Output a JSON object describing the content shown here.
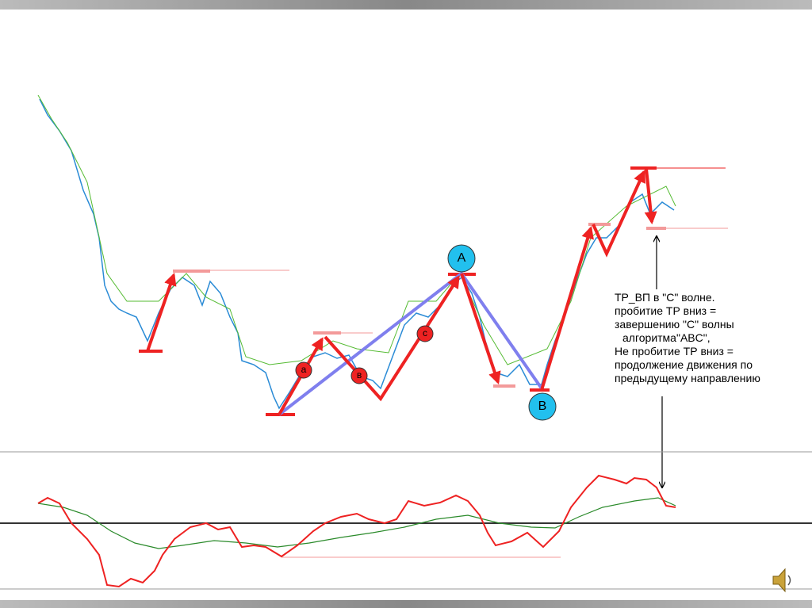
{
  "labels": {
    "A": "A",
    "B": "B",
    "a": "a",
    "b": "в",
    "c": "c"
  },
  "note": {
    "lines": [
      "ТР_ВП в \"С\" волне.",
      "пробитие ТР вниз  =",
      "завершению \"С\" волны",
      "алгоритма\"ABC\",",
      "Не пробитие ТР вниз =",
      "продолжение движения по",
      "предыдущему направлению"
    ]
  }
}
